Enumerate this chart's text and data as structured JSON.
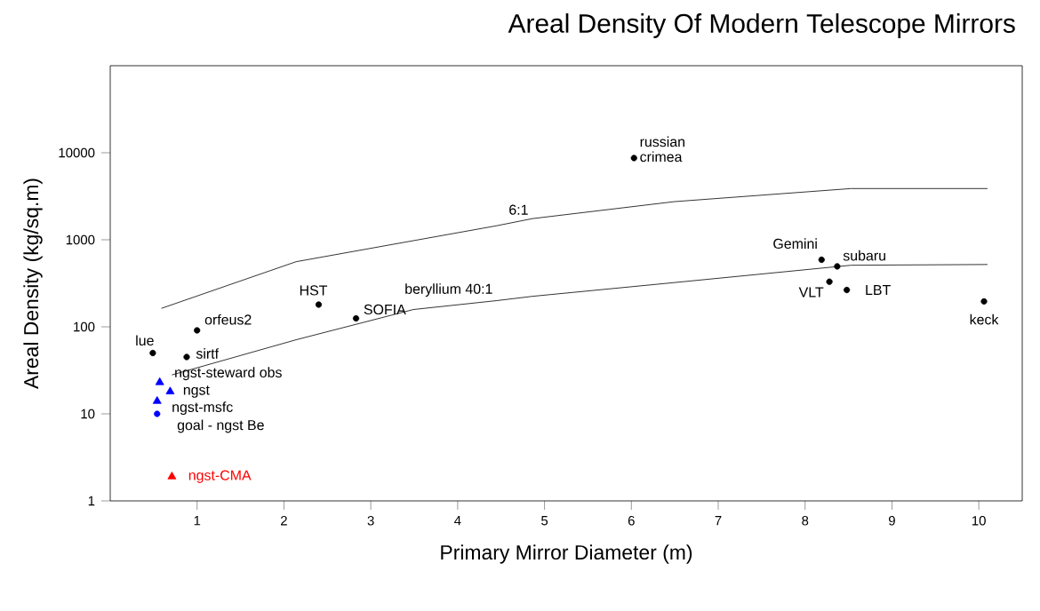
{
  "chart_data": {
    "type": "scatter",
    "title": "Areal Density Of Modern Telescope Mirrors",
    "xlabel": "Primary Mirror Diameter (m)",
    "ylabel": "Areal Density (kg/sq.m)",
    "log": "y",
    "xlim": [
      0,
      10.5
    ],
    "ylim": [
      1,
      100000
    ],
    "xticks": [
      1,
      2,
      3,
      4,
      5,
      6,
      7,
      8,
      9,
      10
    ],
    "yticks": [
      1,
      10,
      100,
      1000,
      10000
    ],
    "series": [
      {
        "type": "line",
        "name": "6:1",
        "color": "#000000",
        "x": [
          0.59,
          2.14,
          4.45,
          4.86,
          6.49,
          8.53,
          10.1
        ],
        "values": [
          163,
          560,
          1450,
          1750,
          2740,
          3880,
          3880
        ]
      },
      {
        "type": "line",
        "name": "beryllium 40:1",
        "color": "#000000",
        "x": [
          0.71,
          2.14,
          3.49,
          4.45,
          4.86,
          6.49,
          8.53,
          10.1
        ],
        "values": [
          28,
          71,
          158,
          200,
          224,
          322,
          510,
          520
        ]
      },
      {
        "color": "#000000",
        "marker": "circle",
        "x": [
          0.49,
          0.88,
          1.0,
          2.4,
          2.83,
          6.03,
          8.19,
          8.37,
          8.28,
          8.48,
          10.06
        ],
        "values": [
          50,
          45,
          91,
          180,
          125,
          8700,
          590,
          495,
          330,
          265,
          196
        ]
      },
      {
        "color": "#0000ff",
        "marker": "triangle",
        "x": [
          0.57,
          0.69,
          0.54
        ],
        "values": [
          23,
          18,
          14
        ]
      },
      {
        "color": "#0000ff",
        "marker": "circle",
        "x": [
          0.54
        ],
        "values": [
          10
        ]
      },
      {
        "color": "#ff0000",
        "marker": "triangle",
        "x": [
          0.71
        ],
        "values": [
          1.9
        ]
      }
    ],
    "annotations": [
      {
        "text": "lue",
        "x": 0.49,
        "y": 50
      },
      {
        "text": "orfeus2",
        "x": 1.0,
        "y": 91
      },
      {
        "text": "sirtf",
        "x": 0.88,
        "y": 45
      },
      {
        "text": "ngst-steward obs",
        "x": 0.57,
        "y": 23
      },
      {
        "text": "ngst",
        "x": 0.69,
        "y": 18
      },
      {
        "text": "ngst-msfc",
        "x": 0.54,
        "y": 14
      },
      {
        "text": "goal - ngst Be",
        "x": 0.54,
        "y": 10
      },
      {
        "text": "ngst-CMA",
        "x": 0.71,
        "y": 1.9
      },
      {
        "text": "HST",
        "x": 2.4,
        "y": 180
      },
      {
        "text": "SOFIA",
        "x": 2.83,
        "y": 125
      },
      {
        "text": "russian crimea",
        "x": 6.03,
        "y": 8700
      },
      {
        "text": "Gemini",
        "x": 8.19,
        "y": 590
      },
      {
        "text": "subaru",
        "x": 8.37,
        "y": 495
      },
      {
        "text": "VLT",
        "x": 8.28,
        "y": 330
      },
      {
        "text": "LBT",
        "x": 8.48,
        "y": 265
      },
      {
        "text": "keck",
        "x": 10.06,
        "y": 196
      }
    ]
  }
}
